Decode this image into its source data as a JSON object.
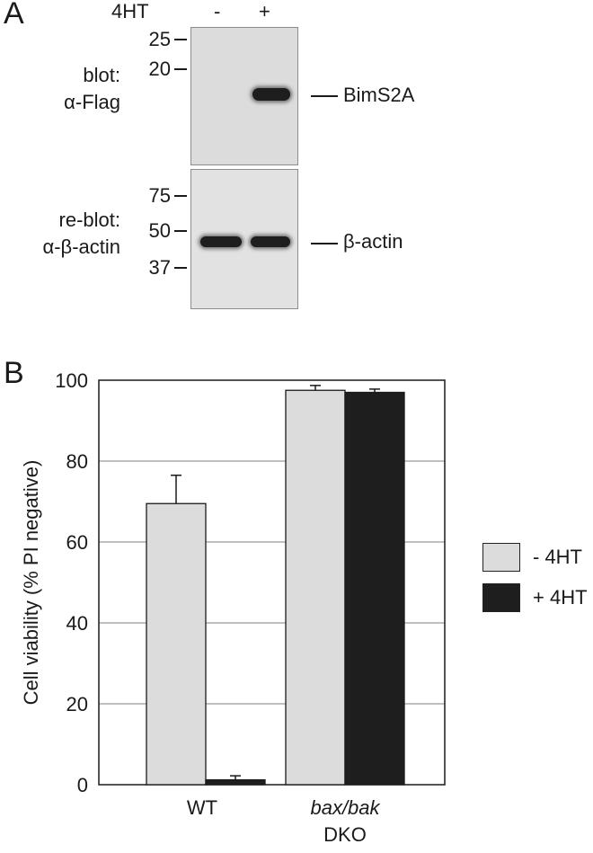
{
  "panel_a": {
    "letter": "A",
    "treatment_label": "4HT",
    "lane_labels": [
      "-",
      "+"
    ],
    "top_blot": {
      "label_line1": "blot:",
      "label_line2": "α-Flag",
      "markers": [
        "25",
        "20"
      ],
      "band_label": "BimS2A"
    },
    "bottom_blot": {
      "label_line1": "re-blot:",
      "label_line2": "α-β-actin",
      "markers": [
        "75",
        "50",
        "37"
      ],
      "band_label": "β-actin"
    }
  },
  "panel_b": {
    "letter": "B"
  },
  "chart_data": {
    "type": "bar",
    "categories": [
      "WT",
      "bax/bak DKO"
    ],
    "category_labels": [
      {
        "line1": "WT",
        "line2": ""
      },
      {
        "line1": "bax/bak",
        "line2": "DKO"
      }
    ],
    "series": [
      {
        "name": "- 4HT",
        "color": "#dcdcdc",
        "values": [
          69.5,
          97.5
        ],
        "errors": [
          7,
          1.2
        ]
      },
      {
        "name": "+ 4HT",
        "color": "#1e1e1e",
        "values": [
          1.2,
          97.0
        ],
        "errors": [
          1,
          0.8
        ]
      }
    ],
    "ylabel": "Cell viability (% PI negative)",
    "ylim": [
      0,
      100
    ],
    "yticks": [
      "0",
      "20",
      "40",
      "60",
      "80",
      "100"
    ],
    "grid": true,
    "legend_position": "right"
  }
}
